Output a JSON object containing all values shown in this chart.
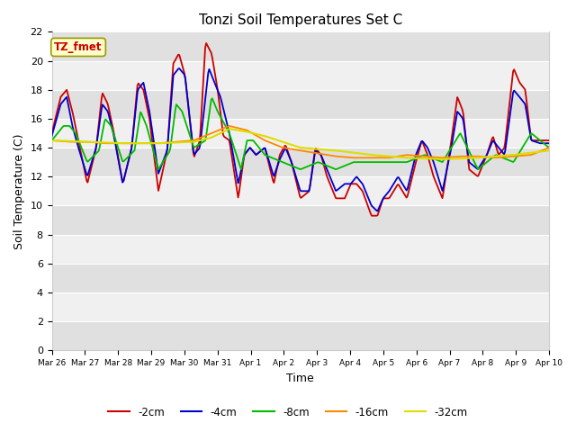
{
  "title": "Tonzi Soil Temperatures Set C",
  "xlabel": "Time",
  "ylabel": "Soil Temperature (C)",
  "ylim": [
    0,
    22
  ],
  "yticks": [
    0,
    2,
    4,
    6,
    8,
    10,
    12,
    14,
    16,
    18,
    20,
    22
  ],
  "series_colors": {
    "-2cm": "#cc0000",
    "-4cm": "#0000cc",
    "-8cm": "#00bb00",
    "-16cm": "#ff8800",
    "-32cm": "#dddd00"
  },
  "legend_label": "TZ_fmet",
  "legend_box_facecolor": "#ffffcc",
  "legend_box_edgecolor": "#999900",
  "figure_facecolor": "#ffffff",
  "plot_facecolor": "#ffffff",
  "band_color_dark": "#e0e0e0",
  "band_color_light": "#f0f0f0",
  "tick_labels": [
    "Mar 26",
    "Mar 27",
    "Mar 28",
    "Mar 29",
    "Mar 30",
    "Mar 31",
    "Apr 1",
    "Apr 2",
    "Apr 3",
    "Apr 4",
    "Apr 5",
    "Apr 6",
    "Apr 7",
    "Apr 8",
    "Apr 9",
    "Apr 10"
  ],
  "s2_keys_t": [
    0,
    0.25,
    0.42,
    0.58,
    0.75,
    1.0,
    1.25,
    1.42,
    1.58,
    1.75,
    2.0,
    2.25,
    2.42,
    2.58,
    2.75,
    3.0,
    3.25,
    3.42,
    3.58,
    3.75,
    4.0,
    4.17,
    4.33,
    4.5,
    4.67,
    4.83,
    5.0,
    5.25,
    5.42,
    5.58,
    5.75,
    6.0,
    6.25,
    6.42,
    6.58,
    6.75,
    7.0,
    7.25,
    7.42,
    7.58,
    7.75,
    8.0,
    8.25,
    8.42,
    8.58,
    8.75,
    9.0,
    9.17,
    9.33,
    9.5,
    9.75,
    10.0,
    10.25,
    10.42,
    10.58,
    10.75,
    11.0,
    11.25,
    11.42,
    11.58,
    11.75,
    12.0,
    12.25,
    12.42,
    12.58,
    12.75,
    13.0,
    13.17,
    13.33,
    13.5,
    13.75,
    14.0
  ],
  "s2_keys_v": [
    15,
    17.5,
    18,
    16.5,
    14.5,
    11.5,
    14,
    17.8,
    17,
    15,
    11.5,
    14,
    18.5,
    18,
    16,
    11.0,
    13.8,
    19.8,
    20.5,
    19,
    13.3,
    14.5,
    21.3,
    20.5,
    18,
    14.8,
    14.5,
    10.5,
    13.5,
    14,
    13.5,
    14,
    11.5,
    13.5,
    14.2,
    13,
    10.5,
    11,
    14,
    13.5,
    12,
    10.5,
    10.5,
    11.5,
    11.5,
    11,
    9.3,
    9.3,
    10.5,
    10.5,
    11.5,
    10.5,
    13,
    14.5,
    13.5,
    12,
    10.5,
    14.5,
    17.5,
    16.5,
    12.5,
    12,
    13.5,
    14.8,
    13.5,
    14,
    19.5,
    18.5,
    18,
    14.5,
    14.5,
    14.5
  ],
  "s4_keys_t": [
    0,
    0.25,
    0.42,
    0.58,
    0.75,
    1.0,
    1.25,
    1.42,
    1.58,
    1.75,
    2.0,
    2.25,
    2.42,
    2.58,
    2.75,
    3.0,
    3.25,
    3.42,
    3.58,
    3.75,
    4.0,
    4.17,
    4.42,
    4.58,
    4.75,
    5.0,
    5.25,
    5.42,
    5.58,
    5.75,
    6.0,
    6.25,
    6.42,
    6.58,
    6.75,
    7.0,
    7.25,
    7.42,
    7.58,
    7.75,
    8.0,
    8.25,
    8.42,
    8.58,
    8.75,
    9.0,
    9.17,
    9.33,
    9.5,
    9.75,
    10.0,
    10.25,
    10.42,
    10.58,
    10.75,
    11.0,
    11.25,
    11.42,
    11.58,
    11.75,
    12.0,
    12.25,
    12.42,
    12.75,
    13.0,
    13.17,
    13.33,
    13.5,
    13.75,
    14.0
  ],
  "s4_keys_v": [
    14.8,
    17,
    17.5,
    15.5,
    14,
    12,
    14,
    17.0,
    16.5,
    14.8,
    11.5,
    14,
    18.0,
    18.5,
    16.5,
    12.2,
    13.8,
    19.0,
    19.5,
    19,
    13.5,
    14.0,
    19.5,
    18.5,
    17.5,
    15.0,
    11.5,
    13.5,
    14,
    13.5,
    14,
    12,
    13.2,
    14,
    13,
    11,
    11,
    13.8,
    13.5,
    12.5,
    11,
    11.5,
    11.5,
    12,
    11.5,
    10,
    9.6,
    10.5,
    11,
    12,
    11,
    13.5,
    14.5,
    14,
    13,
    11,
    14,
    16.5,
    16,
    13,
    12.5,
    13.5,
    14.5,
    13.5,
    18.0,
    17.5,
    17,
    14.5,
    14.3,
    14.3
  ],
  "s8_keys_t": [
    0,
    0.33,
    0.5,
    0.67,
    1.0,
    1.33,
    1.5,
    1.67,
    2.0,
    2.33,
    2.5,
    2.67,
    3.0,
    3.33,
    3.5,
    3.67,
    4.0,
    4.33,
    4.5,
    4.67,
    5.0,
    5.33,
    5.5,
    5.67,
    6.0,
    6.5,
    7.0,
    7.5,
    8.0,
    8.5,
    9.0,
    9.5,
    10.0,
    10.5,
    11.0,
    11.5,
    12.0,
    12.5,
    13.0,
    13.5,
    14.0
  ],
  "s8_keys_v": [
    14.5,
    15.5,
    15.5,
    15,
    13,
    13.8,
    16,
    15.5,
    13,
    13.8,
    16.5,
    15.5,
    12.5,
    13.8,
    17.0,
    16.5,
    14,
    14.5,
    17.5,
    16.5,
    15.0,
    12.5,
    14.5,
    14.5,
    13.5,
    13,
    12.5,
    13,
    12.5,
    13,
    13,
    13,
    13,
    13.5,
    13,
    15.0,
    12.5,
    13.5,
    13,
    15,
    14
  ],
  "s16_keys_t": [
    0,
    0.5,
    1.0,
    1.5,
    2.0,
    2.5,
    3.0,
    3.5,
    4.0,
    4.5,
    5.0,
    5.5,
    6.0,
    6.5,
    7.0,
    7.5,
    8.0,
    8.5,
    9.0,
    9.5,
    10.0,
    10.5,
    11.0,
    11.5,
    12.0,
    12.5,
    13.0,
    13.5,
    14.0
  ],
  "s16_keys_v": [
    14.5,
    14.4,
    14.4,
    14.3,
    14.3,
    14.3,
    14.3,
    14.4,
    14.5,
    15.0,
    15.5,
    15.2,
    14.5,
    14.0,
    13.8,
    13.6,
    13.4,
    13.3,
    13.3,
    13.3,
    13.5,
    13.4,
    13.3,
    13.4,
    13.4,
    13.3,
    13.4,
    13.5,
    14.0
  ],
  "s32_keys_t": [
    0,
    1,
    2,
    3,
    4,
    4.5,
    5.0,
    5.5,
    6.0,
    7.0,
    8.0,
    9.0,
    10.0,
    11.0,
    12.0,
    13.0,
    14.0
  ],
  "s32_keys_v": [
    14.5,
    14.4,
    14.3,
    14.3,
    14.4,
    14.7,
    15.3,
    15.1,
    14.8,
    14.0,
    13.8,
    13.5,
    13.3,
    13.2,
    13.3,
    13.5,
    13.8
  ]
}
